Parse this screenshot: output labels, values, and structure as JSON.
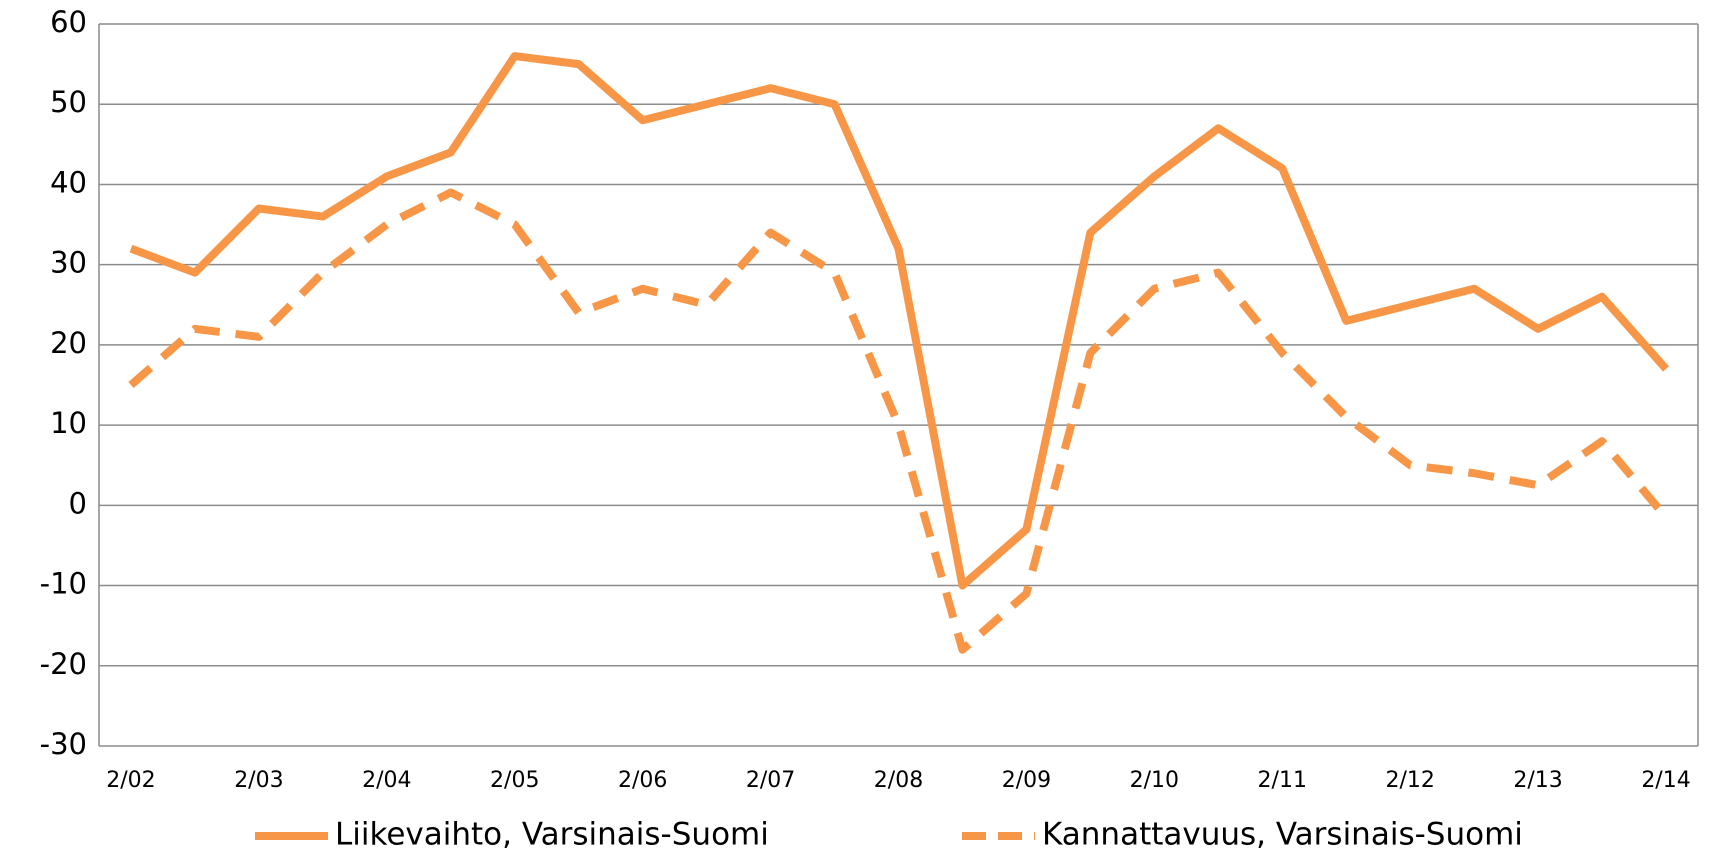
{
  "chart_data": {
    "type": "line",
    "categories": [
      "2/02",
      null,
      "2/03",
      null,
      "2/04",
      null,
      "2/05",
      null,
      "2/06",
      null,
      "2/07",
      null,
      "2/08",
      null,
      "2/09",
      null,
      "2/10",
      null,
      "2/11",
      null,
      "2/12",
      null,
      "2/13",
      null,
      "2/14"
    ],
    "series": [
      {
        "name": "Liikevaihto, Varsinais-Suomi",
        "color": "#f79646",
        "dash": false,
        "values": [
          32,
          29,
          37,
          36,
          41,
          44,
          56,
          55,
          48,
          50,
          52,
          50,
          32,
          -10,
          -3,
          34,
          41,
          47,
          42,
          23,
          25,
          27,
          22,
          26,
          17
        ]
      },
      {
        "name": "Kannattavuus, Varsinais-Suomi",
        "color": "#f79646",
        "dash": true,
        "values": [
          15,
          22,
          21,
          29,
          35,
          39,
          35,
          24,
          27,
          25,
          34,
          29,
          10,
          -18,
          -11,
          19,
          27,
          29,
          19,
          11,
          5,
          4,
          2.5,
          8,
          -1.5
        ]
      }
    ],
    "ylim": [
      -30,
      60
    ],
    "yticks": [
      -30,
      -20,
      -10,
      0,
      10,
      20,
      30,
      40,
      50,
      60
    ],
    "grid": true,
    "legend": "bottom"
  }
}
